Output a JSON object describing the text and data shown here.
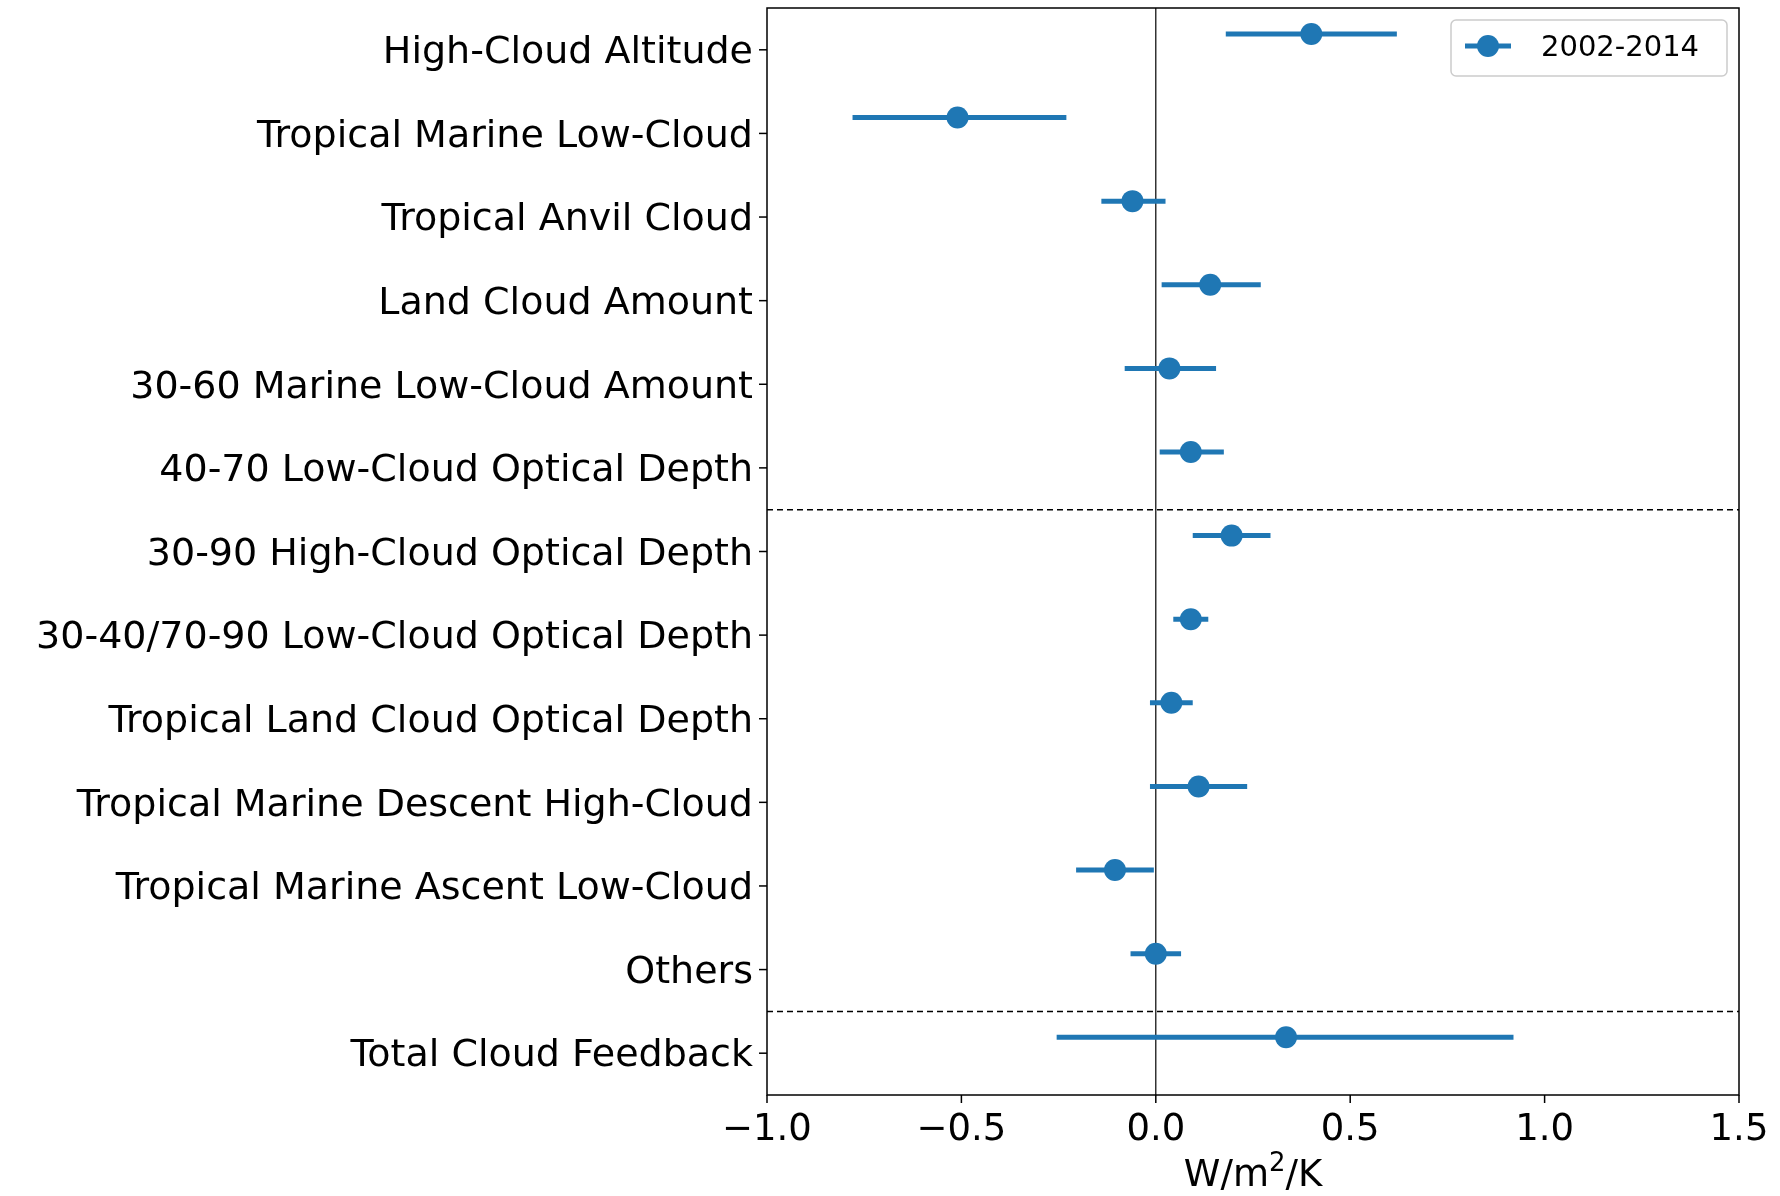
{
  "chart_data": {
    "type": "scatter",
    "orientation": "horizontal",
    "xlabel": "W/m$^{2}$/K",
    "categories": [
      "High-Cloud Altitude",
      "Tropical Marine Low-Cloud",
      "Tropical Anvil Cloud",
      "Land Cloud Amount",
      "30-60 Marine Low-Cloud Amount",
      "40-70 Low-Cloud Optical Depth",
      "30-90 High-Cloud Optical Depth",
      "30-40/70-90 Low-Cloud Optical Depth",
      "Tropical Land Cloud Optical Depth",
      "Tropical Marine Descent High-Cloud",
      "Tropical Marine Ascent Low-Cloud",
      "Others",
      "Total Cloud Feedback"
    ],
    "series": [
      {
        "name": "2002-2014",
        "color": "#1f77b4",
        "values": [
          0.4,
          -0.51,
          -0.06,
          0.14,
          0.035,
          0.09,
          0.195,
          0.09,
          0.04,
          0.11,
          -0.105,
          0.0,
          0.335
        ],
        "errors": [
          [
            0.18,
            0.62
          ],
          [
            -0.78,
            -0.23
          ],
          [
            -0.14,
            0.025
          ],
          [
            0.015,
            0.27
          ],
          [
            -0.08,
            0.155
          ],
          [
            0.01,
            0.175
          ],
          [
            0.095,
            0.295
          ],
          [
            0.045,
            0.135
          ],
          [
            -0.015,
            0.095
          ],
          [
            -0.015,
            0.235
          ],
          [
            -0.205,
            -0.005
          ],
          [
            -0.065,
            0.065
          ],
          [
            -0.255,
            0.92
          ]
        ]
      }
    ],
    "xlim": [
      -1.0,
      1.5
    ],
    "xticks": [
      {
        "value": -1.0,
        "label": "−1.0"
      },
      {
        "value": -0.5,
        "label": "−0.5"
      },
      {
        "value": 0.0,
        "label": "0.0"
      },
      {
        "value": 0.5,
        "label": "0.5"
      },
      {
        "value": 1.0,
        "label": "1.0"
      },
      {
        "value": 1.5,
        "label": "1.5"
      }
    ],
    "ref_lines": [
      {
        "axis": "x",
        "value": 0,
        "color": "#000000",
        "line_style": "solid"
      }
    ],
    "legend": "top right",
    "marker": "circle",
    "grid": false
  }
}
